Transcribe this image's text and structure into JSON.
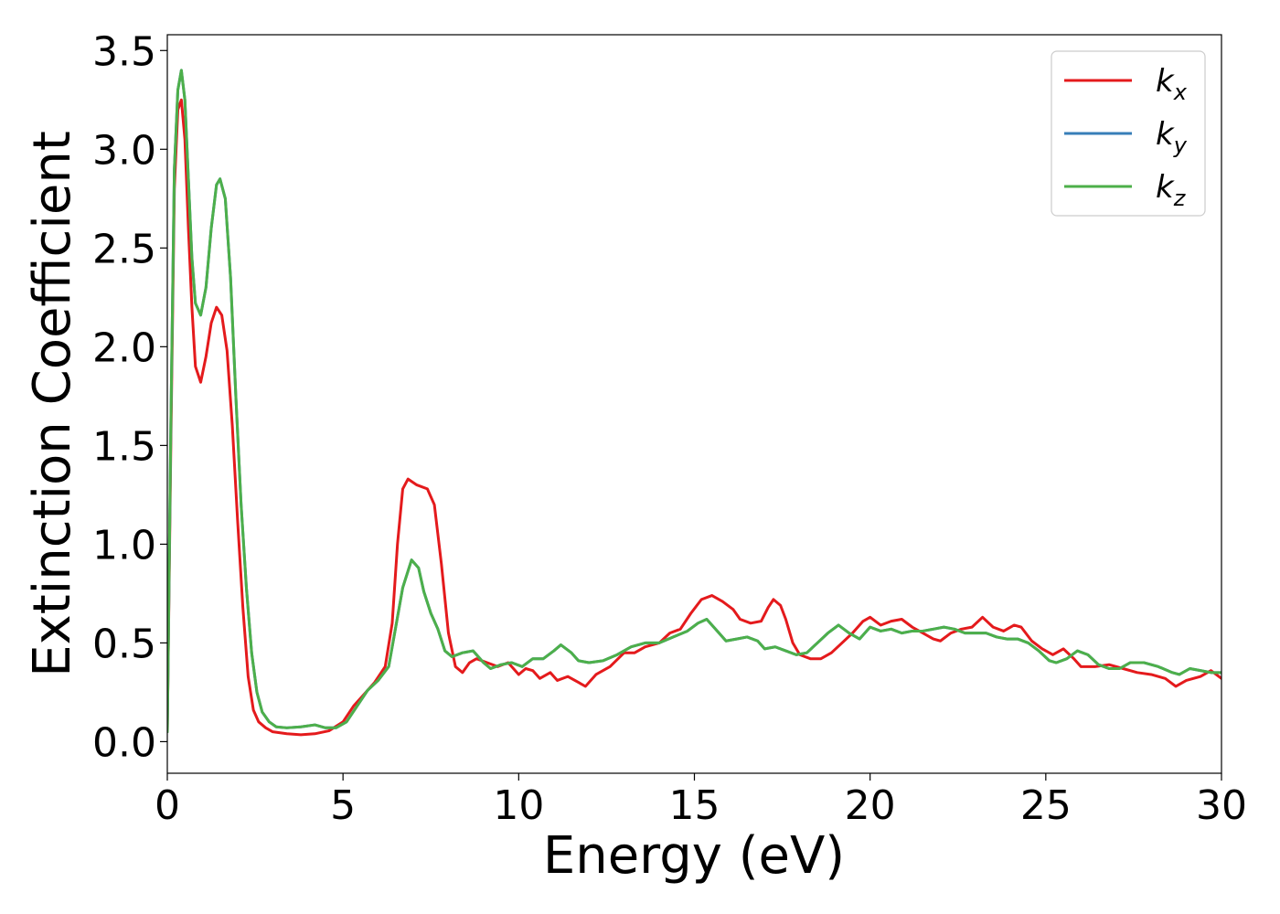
{
  "chart_data": {
    "type": "line",
    "title": "",
    "xlabel": "Energy (eV)",
    "ylabel": "Extinction Coefficient",
    "xlim": [
      0,
      30
    ],
    "ylim": [
      -0.16,
      3.58
    ],
    "x_ticks": [
      0,
      5,
      10,
      15,
      20,
      25,
      30
    ],
    "y_ticks": [
      0.0,
      0.5,
      1.0,
      1.5,
      2.0,
      2.5,
      3.0,
      3.5
    ],
    "x_tick_labels": [
      "0",
      "5",
      "10",
      "15",
      "20",
      "25",
      "30"
    ],
    "y_tick_labels": [
      "0.0",
      "0.5",
      "1.0",
      "1.5",
      "2.0",
      "2.5",
      "3.0",
      "3.5"
    ],
    "grid": false,
    "legend_position": "top-right",
    "series": [
      {
        "name": "k_x",
        "legend_base": "k",
        "legend_sub": "x",
        "color": "#e41a1c",
        "points": [
          [
            0,
            0.05
          ],
          [
            0.1,
            1.5
          ],
          [
            0.2,
            2.8
          ],
          [
            0.3,
            3.2
          ],
          [
            0.4,
            3.25
          ],
          [
            0.5,
            3.05
          ],
          [
            0.6,
            2.6
          ],
          [
            0.7,
            2.2
          ],
          [
            0.8,
            1.9
          ],
          [
            0.95,
            1.82
          ],
          [
            1.1,
            1.95
          ],
          [
            1.25,
            2.12
          ],
          [
            1.4,
            2.2
          ],
          [
            1.55,
            2.16
          ],
          [
            1.7,
            1.98
          ],
          [
            1.85,
            1.6
          ],
          [
            2.0,
            1.12
          ],
          [
            2.15,
            0.68
          ],
          [
            2.3,
            0.33
          ],
          [
            2.45,
            0.16
          ],
          [
            2.6,
            0.1
          ],
          [
            2.8,
            0.07
          ],
          [
            3.0,
            0.05
          ],
          [
            3.4,
            0.04
          ],
          [
            3.8,
            0.035
          ],
          [
            4.2,
            0.04
          ],
          [
            4.6,
            0.055
          ],
          [
            5.0,
            0.1
          ],
          [
            5.3,
            0.18
          ],
          [
            5.6,
            0.24
          ],
          [
            5.9,
            0.3
          ],
          [
            6.2,
            0.38
          ],
          [
            6.4,
            0.6
          ],
          [
            6.55,
            1.0
          ],
          [
            6.7,
            1.28
          ],
          [
            6.85,
            1.33
          ],
          [
            7.1,
            1.3
          ],
          [
            7.4,
            1.28
          ],
          [
            7.6,
            1.2
          ],
          [
            7.8,
            0.9
          ],
          [
            8.0,
            0.55
          ],
          [
            8.2,
            0.38
          ],
          [
            8.4,
            0.35
          ],
          [
            8.6,
            0.4
          ],
          [
            8.8,
            0.42
          ],
          [
            9.1,
            0.4
          ],
          [
            9.4,
            0.38
          ],
          [
            9.7,
            0.4
          ],
          [
            10.0,
            0.34
          ],
          [
            10.2,
            0.37
          ],
          [
            10.4,
            0.36
          ],
          [
            10.6,
            0.32
          ],
          [
            10.9,
            0.35
          ],
          [
            11.1,
            0.31
          ],
          [
            11.4,
            0.33
          ],
          [
            11.7,
            0.3
          ],
          [
            11.9,
            0.28
          ],
          [
            12.2,
            0.34
          ],
          [
            12.6,
            0.38
          ],
          [
            13.0,
            0.45
          ],
          [
            13.3,
            0.45
          ],
          [
            13.6,
            0.48
          ],
          [
            14.0,
            0.5
          ],
          [
            14.3,
            0.55
          ],
          [
            14.6,
            0.57
          ],
          [
            14.9,
            0.65
          ],
          [
            15.2,
            0.72
          ],
          [
            15.5,
            0.74
          ],
          [
            15.8,
            0.71
          ],
          [
            16.1,
            0.67
          ],
          [
            16.3,
            0.62
          ],
          [
            16.6,
            0.6
          ],
          [
            16.9,
            0.61
          ],
          [
            17.1,
            0.68
          ],
          [
            17.25,
            0.72
          ],
          [
            17.45,
            0.69
          ],
          [
            17.6,
            0.62
          ],
          [
            17.8,
            0.5
          ],
          [
            18.0,
            0.44
          ],
          [
            18.3,
            0.42
          ],
          [
            18.6,
            0.42
          ],
          [
            18.9,
            0.45
          ],
          [
            19.2,
            0.5
          ],
          [
            19.5,
            0.55
          ],
          [
            19.8,
            0.61
          ],
          [
            20.0,
            0.63
          ],
          [
            20.3,
            0.59
          ],
          [
            20.6,
            0.61
          ],
          [
            20.9,
            0.62
          ],
          [
            21.2,
            0.58
          ],
          [
            21.5,
            0.55
          ],
          [
            21.8,
            0.52
          ],
          [
            22.0,
            0.51
          ],
          [
            22.3,
            0.55
          ],
          [
            22.6,
            0.57
          ],
          [
            22.9,
            0.58
          ],
          [
            23.2,
            0.63
          ],
          [
            23.5,
            0.58
          ],
          [
            23.8,
            0.56
          ],
          [
            24.1,
            0.59
          ],
          [
            24.3,
            0.58
          ],
          [
            24.6,
            0.51
          ],
          [
            24.9,
            0.47
          ],
          [
            25.2,
            0.44
          ],
          [
            25.5,
            0.47
          ],
          [
            25.8,
            0.42
          ],
          [
            26.0,
            0.38
          ],
          [
            26.4,
            0.38
          ],
          [
            26.8,
            0.39
          ],
          [
            27.2,
            0.37
          ],
          [
            27.6,
            0.35
          ],
          [
            28.0,
            0.34
          ],
          [
            28.4,
            0.32
          ],
          [
            28.7,
            0.28
          ],
          [
            29.0,
            0.31
          ],
          [
            29.4,
            0.33
          ],
          [
            29.7,
            0.36
          ],
          [
            30.0,
            0.32
          ]
        ]
      },
      {
        "name": "k_y",
        "legend_base": "k",
        "legend_sub": "y",
        "color": "#377eb8",
        "same_as": "k_z"
      },
      {
        "name": "k_z",
        "legend_base": "k",
        "legend_sub": "z",
        "color": "#4daf4a",
        "points": [
          [
            0,
            0.05
          ],
          [
            0.1,
            1.6
          ],
          [
            0.2,
            2.9
          ],
          [
            0.3,
            3.3
          ],
          [
            0.4,
            3.4
          ],
          [
            0.5,
            3.25
          ],
          [
            0.6,
            2.85
          ],
          [
            0.7,
            2.45
          ],
          [
            0.8,
            2.22
          ],
          [
            0.95,
            2.16
          ],
          [
            1.1,
            2.3
          ],
          [
            1.25,
            2.6
          ],
          [
            1.4,
            2.82
          ],
          [
            1.5,
            2.85
          ],
          [
            1.65,
            2.75
          ],
          [
            1.8,
            2.35
          ],
          [
            1.95,
            1.75
          ],
          [
            2.1,
            1.2
          ],
          [
            2.25,
            0.78
          ],
          [
            2.4,
            0.45
          ],
          [
            2.55,
            0.25
          ],
          [
            2.7,
            0.15
          ],
          [
            2.9,
            0.1
          ],
          [
            3.1,
            0.075
          ],
          [
            3.4,
            0.07
          ],
          [
            3.8,
            0.075
          ],
          [
            4.2,
            0.085
          ],
          [
            4.5,
            0.07
          ],
          [
            4.8,
            0.07
          ],
          [
            5.1,
            0.1
          ],
          [
            5.4,
            0.18
          ],
          [
            5.7,
            0.26
          ],
          [
            6.0,
            0.31
          ],
          [
            6.3,
            0.38
          ],
          [
            6.5,
            0.58
          ],
          [
            6.7,
            0.78
          ],
          [
            6.95,
            0.92
          ],
          [
            7.15,
            0.88
          ],
          [
            7.3,
            0.76
          ],
          [
            7.5,
            0.65
          ],
          [
            7.7,
            0.57
          ],
          [
            7.9,
            0.46
          ],
          [
            8.1,
            0.43
          ],
          [
            8.4,
            0.45
          ],
          [
            8.7,
            0.46
          ],
          [
            9.0,
            0.4
          ],
          [
            9.2,
            0.37
          ],
          [
            9.5,
            0.39
          ],
          [
            9.8,
            0.4
          ],
          [
            10.1,
            0.38
          ],
          [
            10.4,
            0.42
          ],
          [
            10.7,
            0.42
          ],
          [
            11.0,
            0.46
          ],
          [
            11.2,
            0.49
          ],
          [
            11.5,
            0.45
          ],
          [
            11.7,
            0.41
          ],
          [
            12.0,
            0.4
          ],
          [
            12.4,
            0.41
          ],
          [
            12.8,
            0.44
          ],
          [
            13.2,
            0.48
          ],
          [
            13.6,
            0.5
          ],
          [
            14.0,
            0.5
          ],
          [
            14.4,
            0.53
          ],
          [
            14.8,
            0.56
          ],
          [
            15.1,
            0.6
          ],
          [
            15.35,
            0.62
          ],
          [
            15.6,
            0.57
          ],
          [
            15.9,
            0.51
          ],
          [
            16.2,
            0.52
          ],
          [
            16.5,
            0.53
          ],
          [
            16.8,
            0.51
          ],
          [
            17.0,
            0.47
          ],
          [
            17.3,
            0.48
          ],
          [
            17.6,
            0.46
          ],
          [
            17.9,
            0.44
          ],
          [
            18.2,
            0.45
          ],
          [
            18.5,
            0.5
          ],
          [
            18.8,
            0.55
          ],
          [
            19.1,
            0.59
          ],
          [
            19.4,
            0.55
          ],
          [
            19.7,
            0.52
          ],
          [
            20.0,
            0.58
          ],
          [
            20.3,
            0.56
          ],
          [
            20.6,
            0.57
          ],
          [
            20.9,
            0.55
          ],
          [
            21.2,
            0.56
          ],
          [
            21.5,
            0.56
          ],
          [
            21.8,
            0.57
          ],
          [
            22.1,
            0.58
          ],
          [
            22.4,
            0.57
          ],
          [
            22.7,
            0.55
          ],
          [
            23.0,
            0.55
          ],
          [
            23.3,
            0.55
          ],
          [
            23.6,
            0.53
          ],
          [
            23.9,
            0.52
          ],
          [
            24.2,
            0.52
          ],
          [
            24.5,
            0.5
          ],
          [
            24.8,
            0.46
          ],
          [
            25.1,
            0.41
          ],
          [
            25.3,
            0.4
          ],
          [
            25.6,
            0.42
          ],
          [
            25.9,
            0.46
          ],
          [
            26.2,
            0.44
          ],
          [
            26.5,
            0.39
          ],
          [
            26.8,
            0.37
          ],
          [
            27.1,
            0.37
          ],
          [
            27.4,
            0.4
          ],
          [
            27.8,
            0.4
          ],
          [
            28.2,
            0.38
          ],
          [
            28.6,
            0.35
          ],
          [
            28.8,
            0.34
          ],
          [
            29.1,
            0.37
          ],
          [
            29.4,
            0.36
          ],
          [
            29.7,
            0.35
          ],
          [
            30.0,
            0.35
          ]
        ]
      }
    ]
  }
}
